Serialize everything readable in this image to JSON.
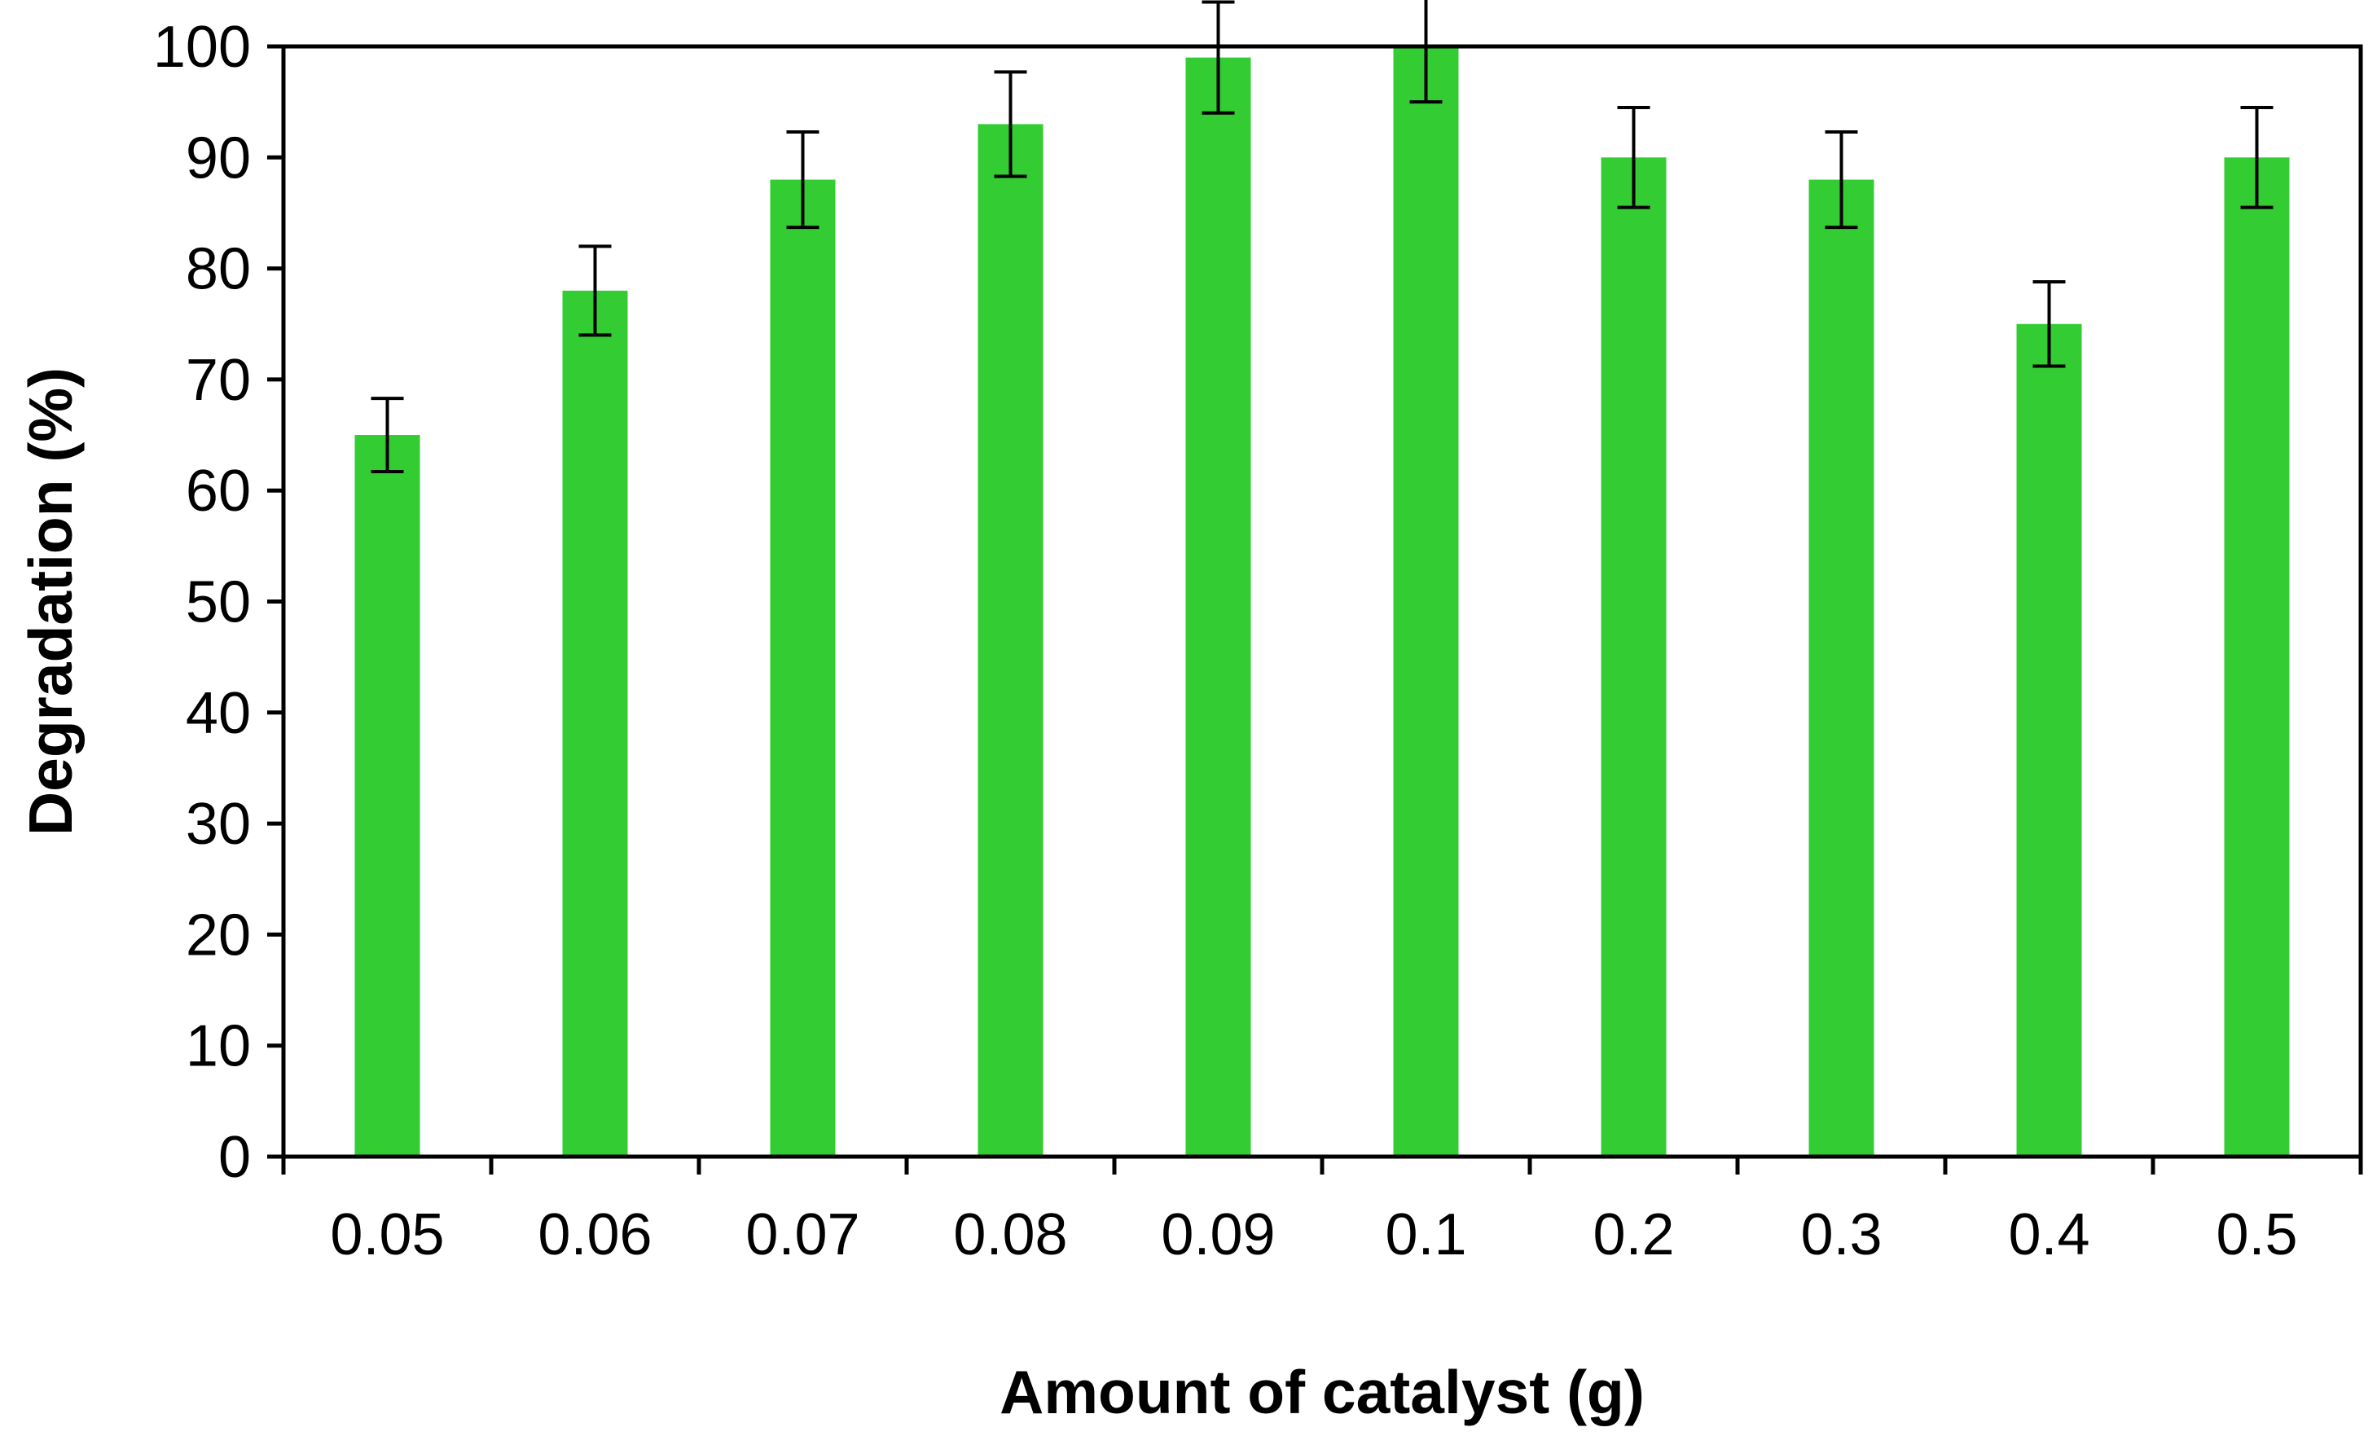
{
  "chart_data": {
    "type": "bar",
    "title": "",
    "xlabel": "Amount of catalyst (g)",
    "ylabel": "Degradation (%)",
    "categories": [
      "0.05",
      "0.06",
      "0.07",
      "0.08",
      "0.09",
      "0.1",
      "0.2",
      "0.3",
      "0.4",
      "0.5"
    ],
    "values": [
      65,
      78,
      88,
      93,
      99,
      100,
      90,
      88,
      75,
      90
    ],
    "error_bars": [
      3.3,
      4.0,
      4.3,
      4.7,
      5.0,
      5.0,
      4.5,
      4.3,
      3.8,
      4.5
    ],
    "ylim": [
      0,
      100
    ],
    "yticks": [
      0,
      10,
      20,
      30,
      40,
      50,
      60,
      70,
      80,
      90,
      100
    ],
    "grid": false,
    "legend": "none",
    "colors": {
      "bar": "#33CC33",
      "axis": "#000000",
      "error_bar": "#000000",
      "background": "#FFFFFF"
    }
  }
}
